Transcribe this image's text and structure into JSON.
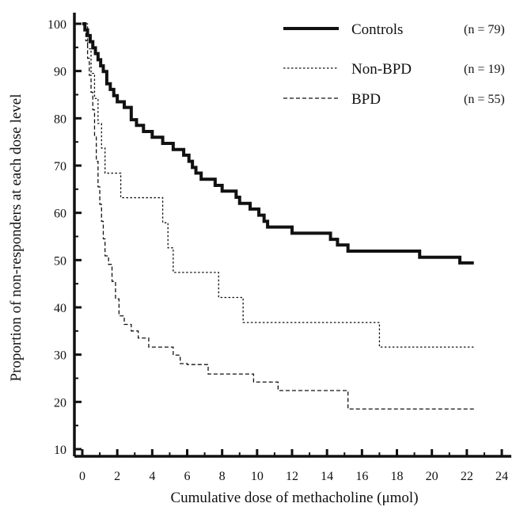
{
  "chart_data": {
    "type": "line",
    "title": "",
    "xlabel": "Cumulative dose of methacholine (μmol)",
    "ylabel": "Proportion of non-responders at each dose level",
    "xlim": [
      0,
      24
    ],
    "ylim": [
      10,
      100
    ],
    "xticks": [
      0,
      2,
      4,
      6,
      8,
      10,
      12,
      14,
      16,
      18,
      20,
      22,
      24
    ],
    "yticks": [
      10,
      20,
      30,
      40,
      50,
      60,
      70,
      80,
      90,
      100
    ],
    "legend_position": "top-right",
    "series": [
      {
        "name": "Controls",
        "n_label": "(n = 79)",
        "line_style": "solid-thick",
        "color": "#111111",
        "x": [
          0,
          0.15,
          0.3,
          0.45,
          0.6,
          0.75,
          0.9,
          1.05,
          1.2,
          1.4,
          1.6,
          1.8,
          2.0,
          2.4,
          2.8,
          3.1,
          3.5,
          4.0,
          4.6,
          5.2,
          5.8,
          6.1,
          6.3,
          6.5,
          6.8,
          7.2,
          7.6,
          8.0,
          8.4,
          8.8,
          9.0,
          9.2,
          9.6,
          10.1,
          10.4,
          10.6,
          11.2,
          12.0,
          12.6,
          13.2,
          14.2,
          14.6,
          15.2,
          16.0,
          17.0,
          18.5,
          19.3,
          20.5,
          21.6,
          22.4
        ],
        "y": [
          100,
          98.7,
          97.5,
          96.2,
          94.9,
          93.7,
          92.4,
          91.1,
          89.9,
          87.3,
          86.1,
          84.8,
          83.5,
          82.3,
          79.7,
          78.5,
          77.2,
          76.0,
          74.7,
          73.4,
          72.2,
          70.9,
          69.6,
          68.4,
          67.1,
          67.1,
          65.8,
          64.6,
          64.6,
          63.3,
          62.0,
          62.0,
          60.8,
          59.5,
          58.2,
          57.0,
          57.0,
          55.7,
          55.7,
          55.7,
          54.4,
          53.2,
          51.9,
          51.9,
          51.9,
          51.9,
          50.6,
          50.6,
          49.4,
          49.4
        ]
      },
      {
        "name": "Non-BPD",
        "n_label": "(n = 19)",
        "line_style": "dotted",
        "color": "#111111",
        "x": [
          0,
          0.3,
          0.5,
          0.7,
          0.9,
          1.1,
          1.3,
          2.2,
          4.6,
          4.9,
          5.2,
          5.6,
          7.8,
          9.2,
          17.0,
          22.5
        ],
        "y": [
          100,
          94.7,
          89.5,
          84.2,
          78.9,
          73.7,
          68.4,
          63.2,
          57.9,
          52.6,
          47.4,
          47.4,
          42.1,
          36.8,
          31.6,
          31.6
        ]
      },
      {
        "name": "BPD",
        "n_label": "(n = 55)",
        "line_style": "dashed",
        "color": "#111111",
        "x": [
          0,
          0.2,
          0.3,
          0.4,
          0.5,
          0.6,
          0.7,
          0.8,
          0.9,
          1.0,
          1.1,
          1.2,
          1.3,
          1.5,
          1.7,
          1.9,
          2.1,
          2.4,
          2.8,
          3.2,
          3.8,
          5.2,
          5.6,
          6.0,
          7.2,
          9.8,
          11.2,
          15.2,
          22.5
        ],
        "y": [
          100,
          96.4,
          92.7,
          89.1,
          85.5,
          81.8,
          76.4,
          70.9,
          65.5,
          61.8,
          58.2,
          54.5,
          50.9,
          49.1,
          45.5,
          41.8,
          38.2,
          36.4,
          35.0,
          33.5,
          31.6,
          29.9,
          28.1,
          27.9,
          25.9,
          24.2,
          22.4,
          18.5,
          18.5
        ]
      }
    ]
  }
}
